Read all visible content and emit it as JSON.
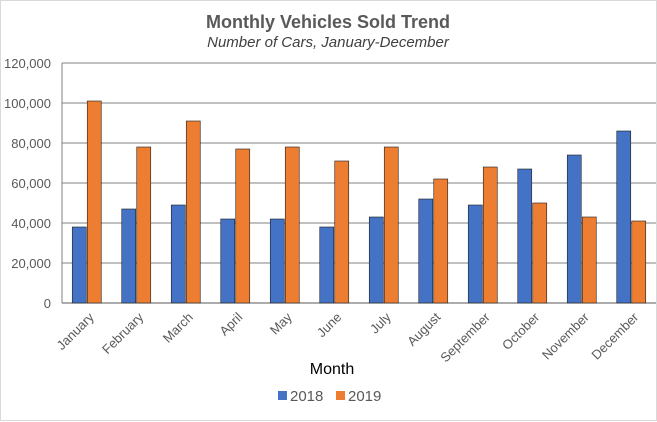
{
  "chart_data": {
    "type": "bar",
    "title": "Monthly Vehicles Sold Trend",
    "subtitle": "Number of Cars, January-December",
    "xlabel": "Month",
    "ylabel": "",
    "categories": [
      "January",
      "February",
      "March",
      "April",
      "May",
      "June",
      "July",
      "August",
      "September",
      "October",
      "November",
      "December"
    ],
    "series": [
      {
        "name": "2018",
        "color": "#4472c4",
        "values": [
          38000,
          47000,
          49000,
          42000,
          42000,
          38000,
          43000,
          52000,
          49000,
          67000,
          74000,
          86000
        ]
      },
      {
        "name": "2019",
        "color": "#ed7d31",
        "values": [
          101000,
          78000,
          91000,
          77000,
          78000,
          71000,
          78000,
          62000,
          68000,
          50000,
          43000,
          41000
        ]
      }
    ],
    "ylim": [
      0,
      120000
    ],
    "yticks": [
      0,
      20000,
      40000,
      60000,
      80000,
      100000,
      120000
    ],
    "ytick_labels": [
      "0",
      "20,000",
      "40,000",
      "60,000",
      "80,000",
      "100,000",
      "120,000"
    ],
    "grid": true,
    "legend_position": "bottom"
  }
}
